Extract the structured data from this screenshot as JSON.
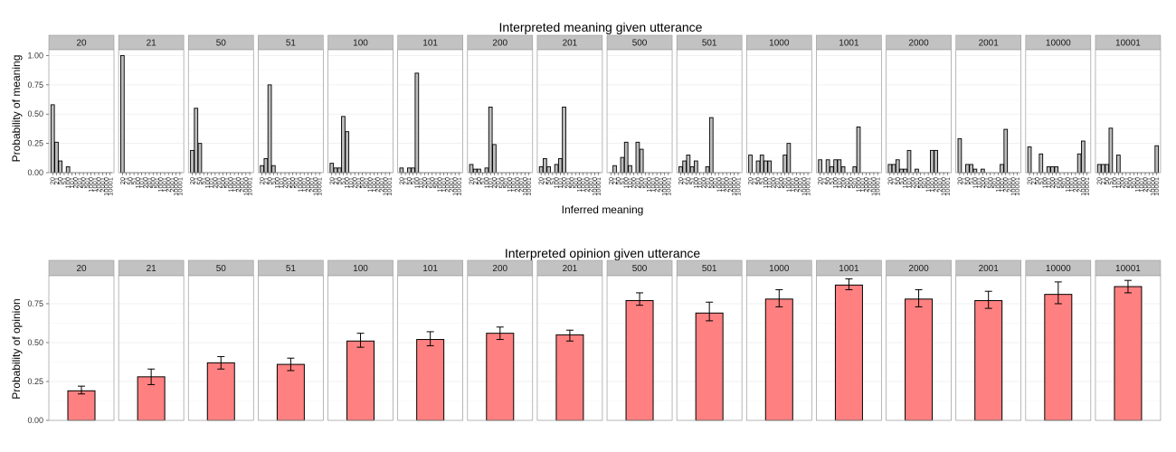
{
  "chart_data": [
    {
      "type": "bar",
      "title": "Interpreted meaning given utterance",
      "xlabel": "Inferred meaning",
      "ylabel": "Probability of meaning",
      "ylim": [
        0,
        1.05
      ],
      "yticks": [
        "0.00",
        "0.25",
        "0.50",
        "0.75",
        "1.00"
      ],
      "ytick_values": [
        0,
        0.25,
        0.5,
        0.75,
        1.0
      ],
      "grid": true,
      "categories": [
        "20",
        "21",
        "50",
        "51",
        "100",
        "101",
        "200",
        "201",
        "500",
        "501",
        "1000",
        "1001",
        "2000",
        "2001",
        "10000",
        "10001"
      ],
      "panels": [
        "20",
        "21",
        "50",
        "51",
        "100",
        "101",
        "200",
        "201",
        "500",
        "501",
        "1000",
        "1001",
        "2000",
        "2001",
        "10000",
        "10001"
      ],
      "series": [
        {
          "name": "20",
          "values": [
            0.58,
            0.26,
            0.1,
            0,
            0.05,
            0,
            0,
            0,
            0,
            0,
            0,
            0,
            0,
            0,
            0,
            0
          ]
        },
        {
          "name": "21",
          "values": [
            1.0,
            0,
            0,
            0,
            0,
            0,
            0,
            0,
            0,
            0,
            0,
            0,
            0,
            0,
            0,
            0
          ]
        },
        {
          "name": "50",
          "values": [
            0.19,
            0.55,
            0.25,
            0,
            0,
            0,
            0,
            0,
            0,
            0,
            0,
            0,
            0,
            0,
            0,
            0
          ]
        },
        {
          "name": "51",
          "values": [
            0.06,
            0.12,
            0.75,
            0.06,
            0,
            0,
            0,
            0,
            0,
            0,
            0,
            0,
            0,
            0,
            0,
            0
          ]
        },
        {
          "name": "100",
          "values": [
            0.08,
            0.04,
            0.04,
            0.48,
            0.35,
            0,
            0,
            0,
            0,
            0,
            0,
            0,
            0,
            0,
            0,
            0
          ]
        },
        {
          "name": "101",
          "values": [
            0.04,
            0,
            0.04,
            0.04,
            0.85,
            0,
            0,
            0,
            0,
            0,
            0,
            0,
            0,
            0,
            0,
            0
          ]
        },
        {
          "name": "200",
          "values": [
            0.07,
            0.03,
            0.03,
            0,
            0.04,
            0.56,
            0.24,
            0,
            0,
            0,
            0,
            0,
            0,
            0,
            0,
            0
          ]
        },
        {
          "name": "201",
          "values": [
            0.05,
            0.12,
            0.05,
            0,
            0.07,
            0.12,
            0.56,
            0,
            0,
            0,
            0,
            0,
            0,
            0,
            0,
            0
          ]
        },
        {
          "name": "500",
          "values": [
            0,
            0.06,
            0,
            0.13,
            0.26,
            0.06,
            0,
            0.26,
            0.2,
            0,
            0,
            0,
            0,
            0,
            0,
            0
          ]
        },
        {
          "name": "501",
          "values": [
            0.05,
            0.1,
            0.15,
            0.05,
            0.1,
            0,
            0,
            0.05,
            0.47,
            0,
            0,
            0,
            0,
            0,
            0,
            0
          ]
        },
        {
          "name": "1000",
          "values": [
            0.15,
            0,
            0.1,
            0.15,
            0.1,
            0.1,
            0,
            0,
            0,
            0.15,
            0.25,
            0,
            0,
            0,
            0,
            0
          ]
        },
        {
          "name": "1001",
          "values": [
            0.11,
            0,
            0.11,
            0.05,
            0.11,
            0.11,
            0.05,
            0,
            0,
            0.05,
            0.39,
            0,
            0,
            0,
            0,
            0
          ]
        },
        {
          "name": "2000",
          "values": [
            0.07,
            0.07,
            0.11,
            0.03,
            0.03,
            0.19,
            0,
            0.03,
            0,
            0,
            0,
            0.19,
            0.19,
            0,
            0,
            0
          ]
        },
        {
          "name": "2001",
          "values": [
            0.29,
            0,
            0.07,
            0.07,
            0.03,
            0,
            0.03,
            0,
            0,
            0,
            0,
            0.07,
            0.37,
            0,
            0,
            0
          ]
        },
        {
          "name": "10000",
          "values": [
            0.22,
            0,
            0,
            0.16,
            0,
            0.05,
            0.05,
            0.05,
            0,
            0,
            0,
            0,
            0,
            0.16,
            0.27,
            0
          ]
        },
        {
          "name": "10001",
          "values": [
            0.07,
            0.07,
            0.07,
            0.38,
            0,
            0.15,
            0,
            0,
            0,
            0,
            0,
            0,
            0,
            0,
            0,
            0.23
          ]
        }
      ]
    },
    {
      "type": "bar",
      "title": "Interpreted opinion given utterance",
      "xlabel": "",
      "ylabel": "Probability of opinion",
      "ylim": [
        0,
        0.93
      ],
      "yticks": [
        "0.00",
        "0.25",
        "0.50",
        "0.75"
      ],
      "ytick_values": [
        0,
        0.25,
        0.5,
        0.75
      ],
      "grid": true,
      "categories": [
        "20",
        "21",
        "50",
        "51",
        "100",
        "101",
        "200",
        "201",
        "500",
        "501",
        "1000",
        "1001",
        "2000",
        "2001",
        "10000",
        "10001"
      ],
      "values": [
        0.19,
        0.28,
        0.37,
        0.36,
        0.51,
        0.52,
        0.56,
        0.55,
        0.77,
        0.69,
        0.78,
        0.87,
        0.78,
        0.77,
        0.81,
        0.86
      ],
      "error_low": [
        0.17,
        0.23,
        0.33,
        0.32,
        0.47,
        0.48,
        0.52,
        0.51,
        0.74,
        0.64,
        0.73,
        0.84,
        0.73,
        0.72,
        0.75,
        0.82
      ],
      "error_high": [
        0.22,
        0.33,
        0.41,
        0.4,
        0.56,
        0.57,
        0.6,
        0.58,
        0.82,
        0.76,
        0.84,
        0.91,
        0.84,
        0.83,
        0.89,
        0.9
      ],
      "colors": {
        "bar": "#ff8080"
      }
    }
  ]
}
